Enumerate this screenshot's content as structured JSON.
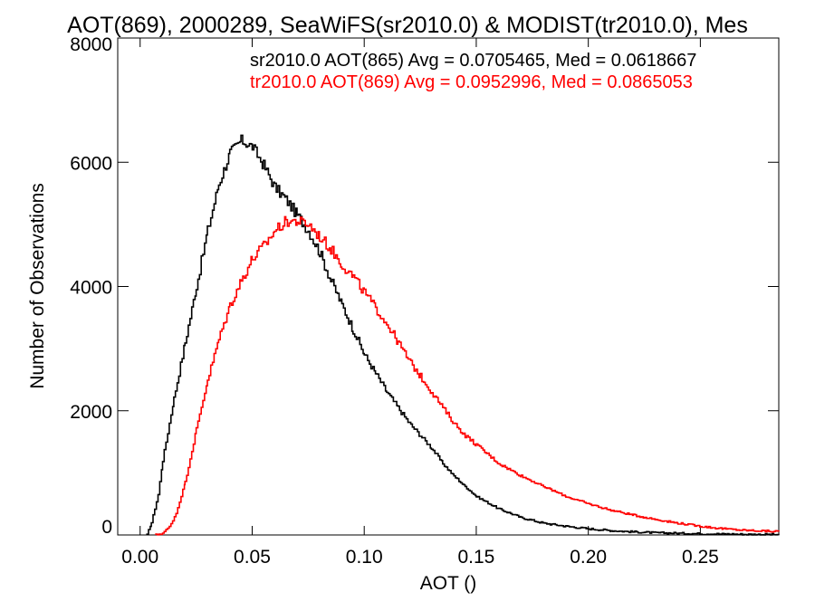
{
  "chart_data": {
    "type": "line",
    "title": "AOT(869), 2000289, SeaWiFS(sr2010.0) & MODIST(tr2010.0), Mes",
    "xlabel": "AOT ()",
    "ylabel": "Number of Observations",
    "xlim": [
      -0.01,
      0.285
    ],
    "ylim": [
      0,
      8000
    ],
    "x_ticks": [
      0.0,
      0.05,
      0.1,
      0.15,
      0.2,
      0.25
    ],
    "x_tick_labels": [
      "0.00",
      "0.05",
      "0.10",
      "0.15",
      "0.20",
      "0.25"
    ],
    "y_ticks": [
      0,
      2000,
      4000,
      6000,
      8000
    ],
    "y_tick_labels": [
      "0",
      "2000",
      "4000",
      "6000",
      "8000"
    ],
    "grid": false,
    "legend_position": "top-right",
    "series": [
      {
        "name": "sr2010.0 AOT(865) Avg = 0.0705465, Med = 0.0618667",
        "color": "#000000",
        "points": [
          [
            0.003,
            0
          ],
          [
            0.005,
            200
          ],
          [
            0.008,
            650
          ],
          [
            0.01,
            1200
          ],
          [
            0.015,
            2200
          ],
          [
            0.02,
            3100
          ],
          [
            0.025,
            4000
          ],
          [
            0.03,
            4900
          ],
          [
            0.035,
            5650
          ],
          [
            0.04,
            6150
          ],
          [
            0.045,
            6350
          ],
          [
            0.05,
            6250
          ],
          [
            0.055,
            5950
          ],
          [
            0.06,
            5600
          ],
          [
            0.065,
            5400
          ],
          [
            0.07,
            5150
          ],
          [
            0.075,
            4900
          ],
          [
            0.08,
            4550
          ],
          [
            0.085,
            4100
          ],
          [
            0.09,
            3700
          ],
          [
            0.095,
            3300
          ],
          [
            0.1,
            2900
          ],
          [
            0.105,
            2600
          ],
          [
            0.11,
            2300
          ],
          [
            0.115,
            2050
          ],
          [
            0.12,
            1800
          ],
          [
            0.125,
            1600
          ],
          [
            0.13,
            1400
          ],
          [
            0.135,
            1150
          ],
          [
            0.14,
            950
          ],
          [
            0.145,
            780
          ],
          [
            0.15,
            620
          ],
          [
            0.16,
            420
          ],
          [
            0.17,
            280
          ],
          [
            0.18,
            190
          ],
          [
            0.19,
            140
          ],
          [
            0.2,
            100
          ],
          [
            0.21,
            70
          ],
          [
            0.22,
            50
          ],
          [
            0.23,
            35
          ],
          [
            0.25,
            20
          ],
          [
            0.27,
            10
          ],
          [
            0.285,
            5
          ]
        ]
      },
      {
        "name": "tr2010.0 AOT(869) Avg = 0.0952996, Med = 0.0865053",
        "color": "#ff0000",
        "points": [
          [
            0.007,
            0
          ],
          [
            0.01,
            30
          ],
          [
            0.013,
            130
          ],
          [
            0.016,
            350
          ],
          [
            0.02,
            850
          ],
          [
            0.025,
            1700
          ],
          [
            0.03,
            2500
          ],
          [
            0.035,
            3150
          ],
          [
            0.04,
            3700
          ],
          [
            0.045,
            4100
          ],
          [
            0.05,
            4450
          ],
          [
            0.055,
            4650
          ],
          [
            0.06,
            4900
          ],
          [
            0.065,
            5050
          ],
          [
            0.07,
            5050
          ],
          [
            0.075,
            5000
          ],
          [
            0.08,
            4800
          ],
          [
            0.085,
            4600
          ],
          [
            0.09,
            4350
          ],
          [
            0.095,
            4150
          ],
          [
            0.1,
            3900
          ],
          [
            0.105,
            3650
          ],
          [
            0.11,
            3400
          ],
          [
            0.115,
            3100
          ],
          [
            0.12,
            2800
          ],
          [
            0.125,
            2550
          ],
          [
            0.13,
            2300
          ],
          [
            0.135,
            2050
          ],
          [
            0.14,
            1800
          ],
          [
            0.145,
            1600
          ],
          [
            0.15,
            1450
          ],
          [
            0.155,
            1300
          ],
          [
            0.16,
            1150
          ],
          [
            0.17,
            950
          ],
          [
            0.18,
            780
          ],
          [
            0.19,
            620
          ],
          [
            0.2,
            500
          ],
          [
            0.21,
            400
          ],
          [
            0.22,
            320
          ],
          [
            0.23,
            250
          ],
          [
            0.24,
            190
          ],
          [
            0.25,
            140
          ],
          [
            0.26,
            100
          ],
          [
            0.27,
            75
          ],
          [
            0.285,
            55
          ]
        ]
      }
    ]
  }
}
